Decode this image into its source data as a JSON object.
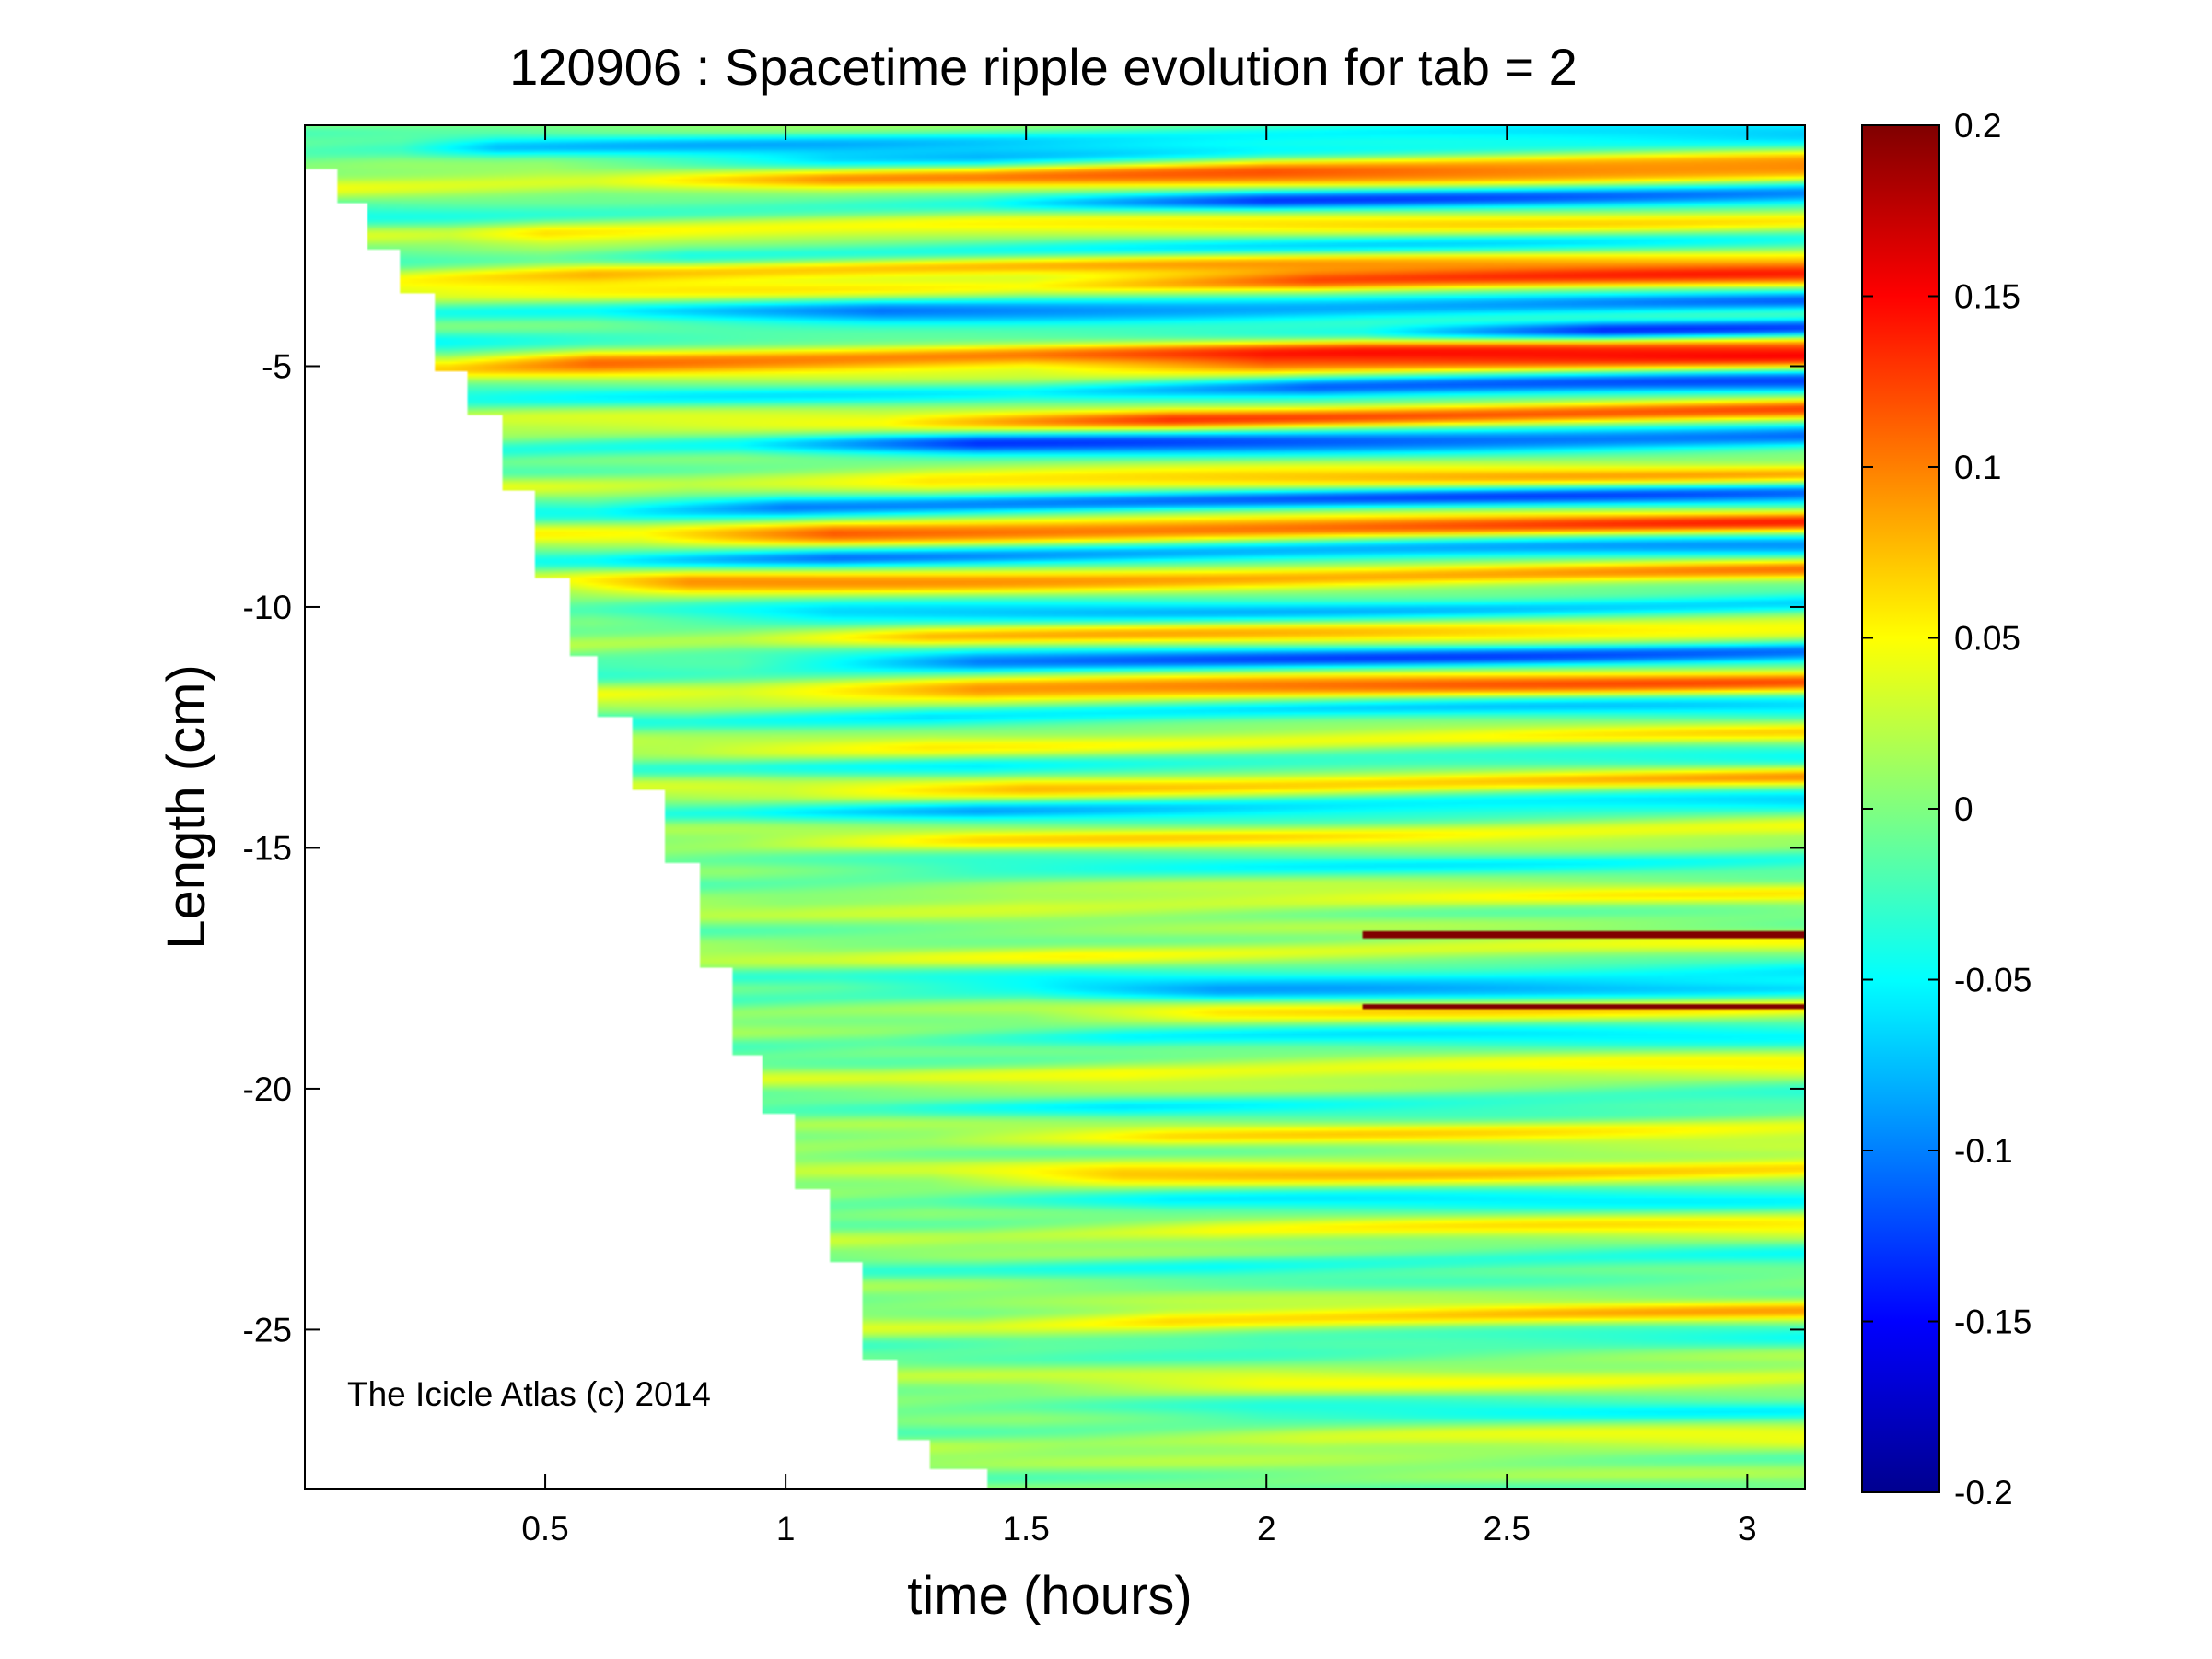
{
  "chart_data": {
    "type": "heatmap",
    "title": "120906 : Spacetime ripple evolution for tab = 2",
    "xlabel": "time (hours)",
    "ylabel": "Length (cm)",
    "xlim": [
      0.0,
      3.12
    ],
    "ylim": [
      -28.3,
      0.0
    ],
    "xticks": [
      {
        "value": 0.5,
        "label": "0.5"
      },
      {
        "value": 1,
        "label": "1"
      },
      {
        "value": 1.5,
        "label": "1.5"
      },
      {
        "value": 2,
        "label": "2"
      },
      {
        "value": 2.5,
        "label": "2.5"
      },
      {
        "value": 3,
        "label": "3"
      }
    ],
    "yticks": [
      {
        "value": -5,
        "label": "-5"
      },
      {
        "value": -10,
        "label": "-10"
      },
      {
        "value": -15,
        "label": "-15"
      },
      {
        "value": -20,
        "label": "-20"
      },
      {
        "value": -25,
        "label": "-25"
      }
    ],
    "colorbar": {
      "colormap": "jet",
      "range": [
        -0.2,
        0.2
      ],
      "ticks": [
        {
          "value": 0.2,
          "label": "0.2"
        },
        {
          "value": 0.15,
          "label": "0.15"
        },
        {
          "value": 0.1,
          "label": "0.1"
        },
        {
          "value": 0.05,
          "label": "0.05"
        },
        {
          "value": 0,
          "label": "0"
        },
        {
          "value": -0.05,
          "label": "-0.05"
        },
        {
          "value": -0.1,
          "label": "-0.1"
        },
        {
          "value": -0.15,
          "label": "-0.15"
        },
        {
          "value": -0.2,
          "label": "-0.2"
        }
      ]
    },
    "growth_front": [
      [
        0.0,
        -0.9
      ],
      [
        0.07,
        -1.6
      ],
      [
        0.13,
        -2.6
      ],
      [
        0.2,
        -3.5
      ],
      [
        0.27,
        -5.1
      ],
      [
        0.34,
        -6.0
      ],
      [
        0.41,
        -7.6
      ],
      [
        0.48,
        -9.4
      ],
      [
        0.55,
        -11.0
      ],
      [
        0.61,
        -12.3
      ],
      [
        0.68,
        -13.8
      ],
      [
        0.75,
        -15.3
      ],
      [
        0.82,
        -17.5
      ],
      [
        0.89,
        -19.3
      ],
      [
        0.95,
        -20.5
      ],
      [
        1.02,
        -22.1
      ],
      [
        1.09,
        -23.6
      ],
      [
        1.16,
        -25.6
      ],
      [
        1.23,
        -27.3
      ],
      [
        1.3,
        -27.9
      ],
      [
        1.42,
        -28.3
      ]
    ],
    "ripples": [
      {
        "y": -0.5,
        "amp": -0.06,
        "t_start": 0.2,
        "growth": 0.2
      },
      {
        "y": -0.9,
        "amp": -0.09,
        "t_start": 0.5,
        "growth": 0.6
      },
      {
        "y": -1.0,
        "amp": 0.11,
        "t_start": 1.4,
        "growth": 0.6
      },
      {
        "y": -1.3,
        "amp": 0.09,
        "t_start": 0.6,
        "growth": 0.5
      },
      {
        "y": -1.8,
        "amp": -0.11,
        "t_start": 1.4,
        "growth": 0.6
      },
      {
        "y": -2.3,
        "amp": 0.06,
        "t_start": 0.3,
        "growth": 0.2
      },
      {
        "y": -2.8,
        "amp": -0.06,
        "t_start": 0.5,
        "growth": 0.3
      },
      {
        "y": -3.1,
        "amp": 0.08,
        "t_start": 0.2,
        "growth": 0.4
      },
      {
        "y": -3.5,
        "amp": 0.12,
        "t_start": 1.5,
        "growth": 0.6
      },
      {
        "y": -4.0,
        "amp": -0.1,
        "t_start": 0.6,
        "growth": 0.6
      },
      {
        "y": -4.6,
        "amp": -0.13,
        "t_start": 2.2,
        "growth": 0.5
      },
      {
        "y": -4.9,
        "amp": 0.1,
        "t_start": 0.3,
        "growth": 0.3
      },
      {
        "y": -5.2,
        "amp": 0.11,
        "t_start": 1.5,
        "growth": 0.5
      },
      {
        "y": -5.7,
        "amp": -0.12,
        "t_start": 1.5,
        "growth": 0.6
      },
      {
        "y": -6.3,
        "amp": 0.12,
        "t_start": 1.2,
        "growth": 0.6
      },
      {
        "y": -6.8,
        "amp": -0.12,
        "t_start": 0.9,
        "growth": 0.5
      },
      {
        "y": -7.6,
        "amp": 0.08,
        "t_start": 0.8,
        "growth": 0.5
      },
      {
        "y": -8.0,
        "amp": -0.11,
        "t_start": 0.6,
        "growth": 0.4
      },
      {
        "y": -8.6,
        "amp": 0.12,
        "t_start": 0.7,
        "growth": 0.4
      },
      {
        "y": -9.1,
        "amp": -0.09,
        "t_start": 0.6,
        "growth": 0.5
      },
      {
        "y": -9.6,
        "amp": 0.09,
        "t_start": 0.5,
        "growth": 0.3
      },
      {
        "y": -10.3,
        "amp": -0.07,
        "t_start": 0.6,
        "growth": 0.5
      },
      {
        "y": -10.8,
        "amp": 0.07,
        "t_start": 0.9,
        "growth": 0.4
      },
      {
        "y": -11.3,
        "amp": -0.11,
        "t_start": 0.9,
        "growth": 0.5
      },
      {
        "y": -11.9,
        "amp": 0.11,
        "t_start": 0.9,
        "growth": 0.5
      },
      {
        "y": -12.4,
        "amp": -0.06,
        "t_start": 0.8,
        "growth": 0.5
      },
      {
        "y": -13.0,
        "amp": 0.05,
        "t_start": 0.8,
        "growth": 0.5
      },
      {
        "y": -13.5,
        "amp": -0.05,
        "t_start": 0.9,
        "growth": 0.5
      },
      {
        "y": -13.9,
        "amp": 0.08,
        "t_start": 1.0,
        "growth": 0.5
      },
      {
        "y": -14.4,
        "amp": -0.07,
        "t_start": 0.9,
        "growth": 0.5
      },
      {
        "y": -15.0,
        "amp": 0.05,
        "t_start": 0.9,
        "growth": 0.5
      },
      {
        "y": -15.6,
        "amp": -0.04,
        "t_start": 0.9,
        "growth": 0.5
      },
      {
        "y": -16.3,
        "amp": 0.04,
        "t_start": 1.0,
        "growth": 0.5
      },
      {
        "y": -17.4,
        "amp": 0.04,
        "t_start": 1.1,
        "growth": 0.5
      },
      {
        "y": -17.9,
        "amp": -0.05,
        "t_start": 1.1,
        "growth": 0.5
      },
      {
        "y": -18.3,
        "amp": -0.08,
        "t_start": 1.5,
        "growth": 0.4
      },
      {
        "y": -18.6,
        "amp": 0.07,
        "t_start": 1.5,
        "growth": 0.4
      },
      {
        "y": -19.2,
        "amp": -0.05,
        "t_start": 1.2,
        "growth": 0.5
      },
      {
        "y": -19.9,
        "amp": 0.05,
        "t_start": 1.2,
        "growth": 0.5
      },
      {
        "y": -20.6,
        "amp": -0.04,
        "t_start": 1.2,
        "growth": 0.5
      },
      {
        "y": -21.2,
        "amp": 0.05,
        "t_start": 1.3,
        "growth": 0.5
      },
      {
        "y": -22.0,
        "amp": 0.07,
        "t_start": 1.3,
        "growth": 0.4
      },
      {
        "y": -22.6,
        "amp": -0.05,
        "t_start": 1.3,
        "growth": 0.5
      },
      {
        "y": -23.2,
        "amp": 0.05,
        "t_start": 1.4,
        "growth": 0.5
      },
      {
        "y": -23.9,
        "amp": -0.04,
        "t_start": 1.4,
        "growth": 0.5
      },
      {
        "y": -25.0,
        "amp": 0.07,
        "t_start": 1.4,
        "growth": 0.4
      },
      {
        "y": -25.5,
        "amp": -0.04,
        "t_start": 1.5,
        "growth": 0.5
      },
      {
        "y": -26.3,
        "amp": 0.04,
        "t_start": 1.5,
        "growth": 0.5
      },
      {
        "y": -27.0,
        "amp": -0.04,
        "t_start": 1.5,
        "growth": 0.5
      },
      {
        "y": -27.6,
        "amp": 0.04,
        "t_start": 1.6,
        "growth": 0.5
      }
    ],
    "sharp_lines": [
      {
        "y": -16.8,
        "x_start": 2.2,
        "x_end": 3.12,
        "value": 0.2
      },
      {
        "y": -18.3,
        "x_start": 2.2,
        "x_end": 3.12,
        "value": 0.2
      }
    ],
    "annotation": "The Icicle Atlas (c) 2014"
  }
}
